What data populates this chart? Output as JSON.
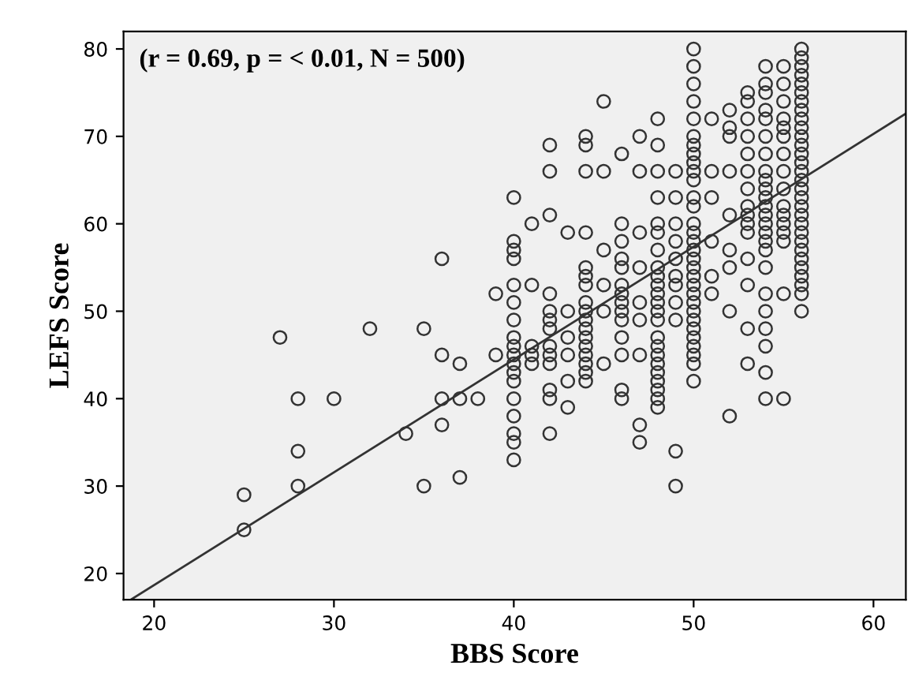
{
  "chart_data": {
    "type": "scatter",
    "xlabel": "BBS Score",
    "ylabel": "LEFS Score",
    "annotations": [
      "(r = 0.69, p = < 0.01, N = 500)"
    ],
    "xlim": [
      18.3,
      61.8
    ],
    "ylim": [
      17,
      82
    ],
    "xticks": [
      20,
      30,
      40,
      50,
      60
    ],
    "yticks": [
      20,
      30,
      40,
      50,
      60,
      70,
      80
    ],
    "grid": false,
    "legend": false,
    "marker": "circle",
    "series": [
      {
        "color": "#333333",
        "x": [
          25,
          25,
          27,
          28,
          28,
          28,
          30,
          32,
          34,
          35,
          35,
          36,
          36,
          36,
          36,
          37,
          37,
          37,
          38,
          39,
          39,
          40,
          40,
          40,
          40,
          40,
          40,
          40,
          40,
          40,
          40,
          40,
          40,
          40,
          40,
          40,
          40,
          40,
          40,
          41,
          41,
          41,
          41,
          41,
          42,
          42,
          42,
          42,
          42,
          42,
          42,
          42,
          42,
          42,
          42,
          42,
          42,
          43,
          43,
          43,
          43,
          43,
          43,
          44,
          44,
          44,
          44,
          44,
          44,
          44,
          44,
          44,
          44,
          44,
          44,
          44,
          44,
          44,
          44,
          44,
          45,
          45,
          45,
          45,
          45,
          45,
          46,
          46,
          46,
          46,
          46,
          46,
          46,
          46,
          46,
          46,
          46,
          46,
          46,
          46,
          47,
          47,
          47,
          47,
          47,
          47,
          47,
          47,
          47,
          48,
          48,
          48,
          48,
          48,
          48,
          48,
          48,
          48,
          48,
          48,
          48,
          48,
          48,
          48,
          48,
          48,
          48,
          48,
          48,
          48,
          48,
          48,
          49,
          49,
          49,
          49,
          49,
          49,
          49,
          49,
          49,
          49,
          49,
          50,
          50,
          50,
          50,
          50,
          50,
          50,
          50,
          50,
          50,
          50,
          50,
          50,
          50,
          50,
          50,
          50,
          50,
          50,
          50,
          50,
          50,
          50,
          50,
          50,
          50,
          50,
          50,
          50,
          50,
          50,
          51,
          51,
          51,
          51,
          51,
          51,
          52,
          52,
          52,
          52,
          52,
          52,
          52,
          52,
          52,
          53,
          53,
          53,
          53,
          53,
          53,
          53,
          53,
          53,
          53,
          53,
          53,
          53,
          53,
          53,
          54,
          54,
          54,
          54,
          54,
          54,
          54,
          54,
          54,
          54,
          54,
          54,
          54,
          54,
          54,
          54,
          54,
          54,
          54,
          54,
          54,
          54,
          54,
          54,
          55,
          55,
          55,
          55,
          55,
          55,
          55,
          55,
          55,
          55,
          55,
          55,
          55,
          55,
          55,
          55,
          56,
          56,
          56,
          56,
          56,
          56,
          56,
          56,
          56,
          56,
          56,
          56,
          56,
          56,
          56,
          56,
          56,
          56,
          56,
          56,
          56,
          56,
          56,
          56,
          56,
          56,
          56,
          56,
          56,
          56
        ],
        "values": [
          25,
          29,
          47,
          40,
          34,
          30,
          40,
          48,
          36,
          48,
          30,
          56,
          45,
          40,
          37,
          44,
          40,
          31,
          40,
          52,
          45,
          63,
          58,
          57,
          56,
          53,
          51,
          49,
          47,
          46,
          45,
          44,
          43,
          42,
          40,
          38,
          36,
          35,
          33,
          60,
          53,
          46,
          45,
          44,
          69,
          66,
          61,
          52,
          50,
          49,
          48,
          46,
          45,
          44,
          41,
          40,
          36,
          59,
          50,
          47,
          45,
          42,
          39,
          70,
          69,
          66,
          59,
          55,
          54,
          53,
          51,
          50,
          49,
          48,
          47,
          46,
          45,
          44,
          43,
          42,
          74,
          66,
          57,
          53,
          50,
          44,
          68,
          60,
          58,
          56,
          55,
          53,
          52,
          51,
          50,
          49,
          47,
          45,
          41,
          40,
          70,
          66,
          59,
          55,
          51,
          49,
          45,
          37,
          35,
          72,
          69,
          66,
          63,
          60,
          59,
          57,
          55,
          54,
          53,
          52,
          51,
          50,
          49,
          47,
          46,
          45,
          44,
          43,
          42,
          41,
          40,
          39,
          66,
          63,
          60,
          58,
          56,
          54,
          53,
          51,
          49,
          34,
          30,
          80,
          78,
          76,
          74,
          72,
          70,
          69,
          68,
          67,
          66,
          65,
          63,
          62,
          60,
          59,
          58,
          57,
          56,
          55,
          54,
          53,
          52,
          51,
          50,
          49,
          48,
          47,
          46,
          45,
          44,
          42,
          72,
          66,
          63,
          58,
          54,
          52,
          73,
          71,
          70,
          66,
          61,
          57,
          55,
          50,
          38,
          75,
          74,
          72,
          70,
          68,
          66,
          64,
          62,
          61,
          60,
          59,
          56,
          53,
          48,
          44,
          78,
          76,
          75,
          73,
          72,
          70,
          68,
          66,
          65,
          64,
          63,
          62,
          61,
          60,
          59,
          58,
          57,
          55,
          52,
          50,
          48,
          46,
          43,
          40,
          78,
          76,
          74,
          72,
          71,
          70,
          68,
          66,
          64,
          62,
          61,
          60,
          59,
          58,
          52,
          40,
          80,
          79,
          78,
          77,
          76,
          75,
          74,
          73,
          72,
          71,
          70,
          69,
          68,
          67,
          66,
          65,
          64,
          63,
          62,
          61,
          60,
          59,
          58,
          57,
          56,
          55,
          54,
          53,
          52,
          50
        ]
      },
      {
        "type": "line",
        "color": "#333333",
        "marker": "none",
        "x": [
          18.7,
          61.8
        ],
        "values": [
          17,
          72.6
        ]
      }
    ]
  }
}
